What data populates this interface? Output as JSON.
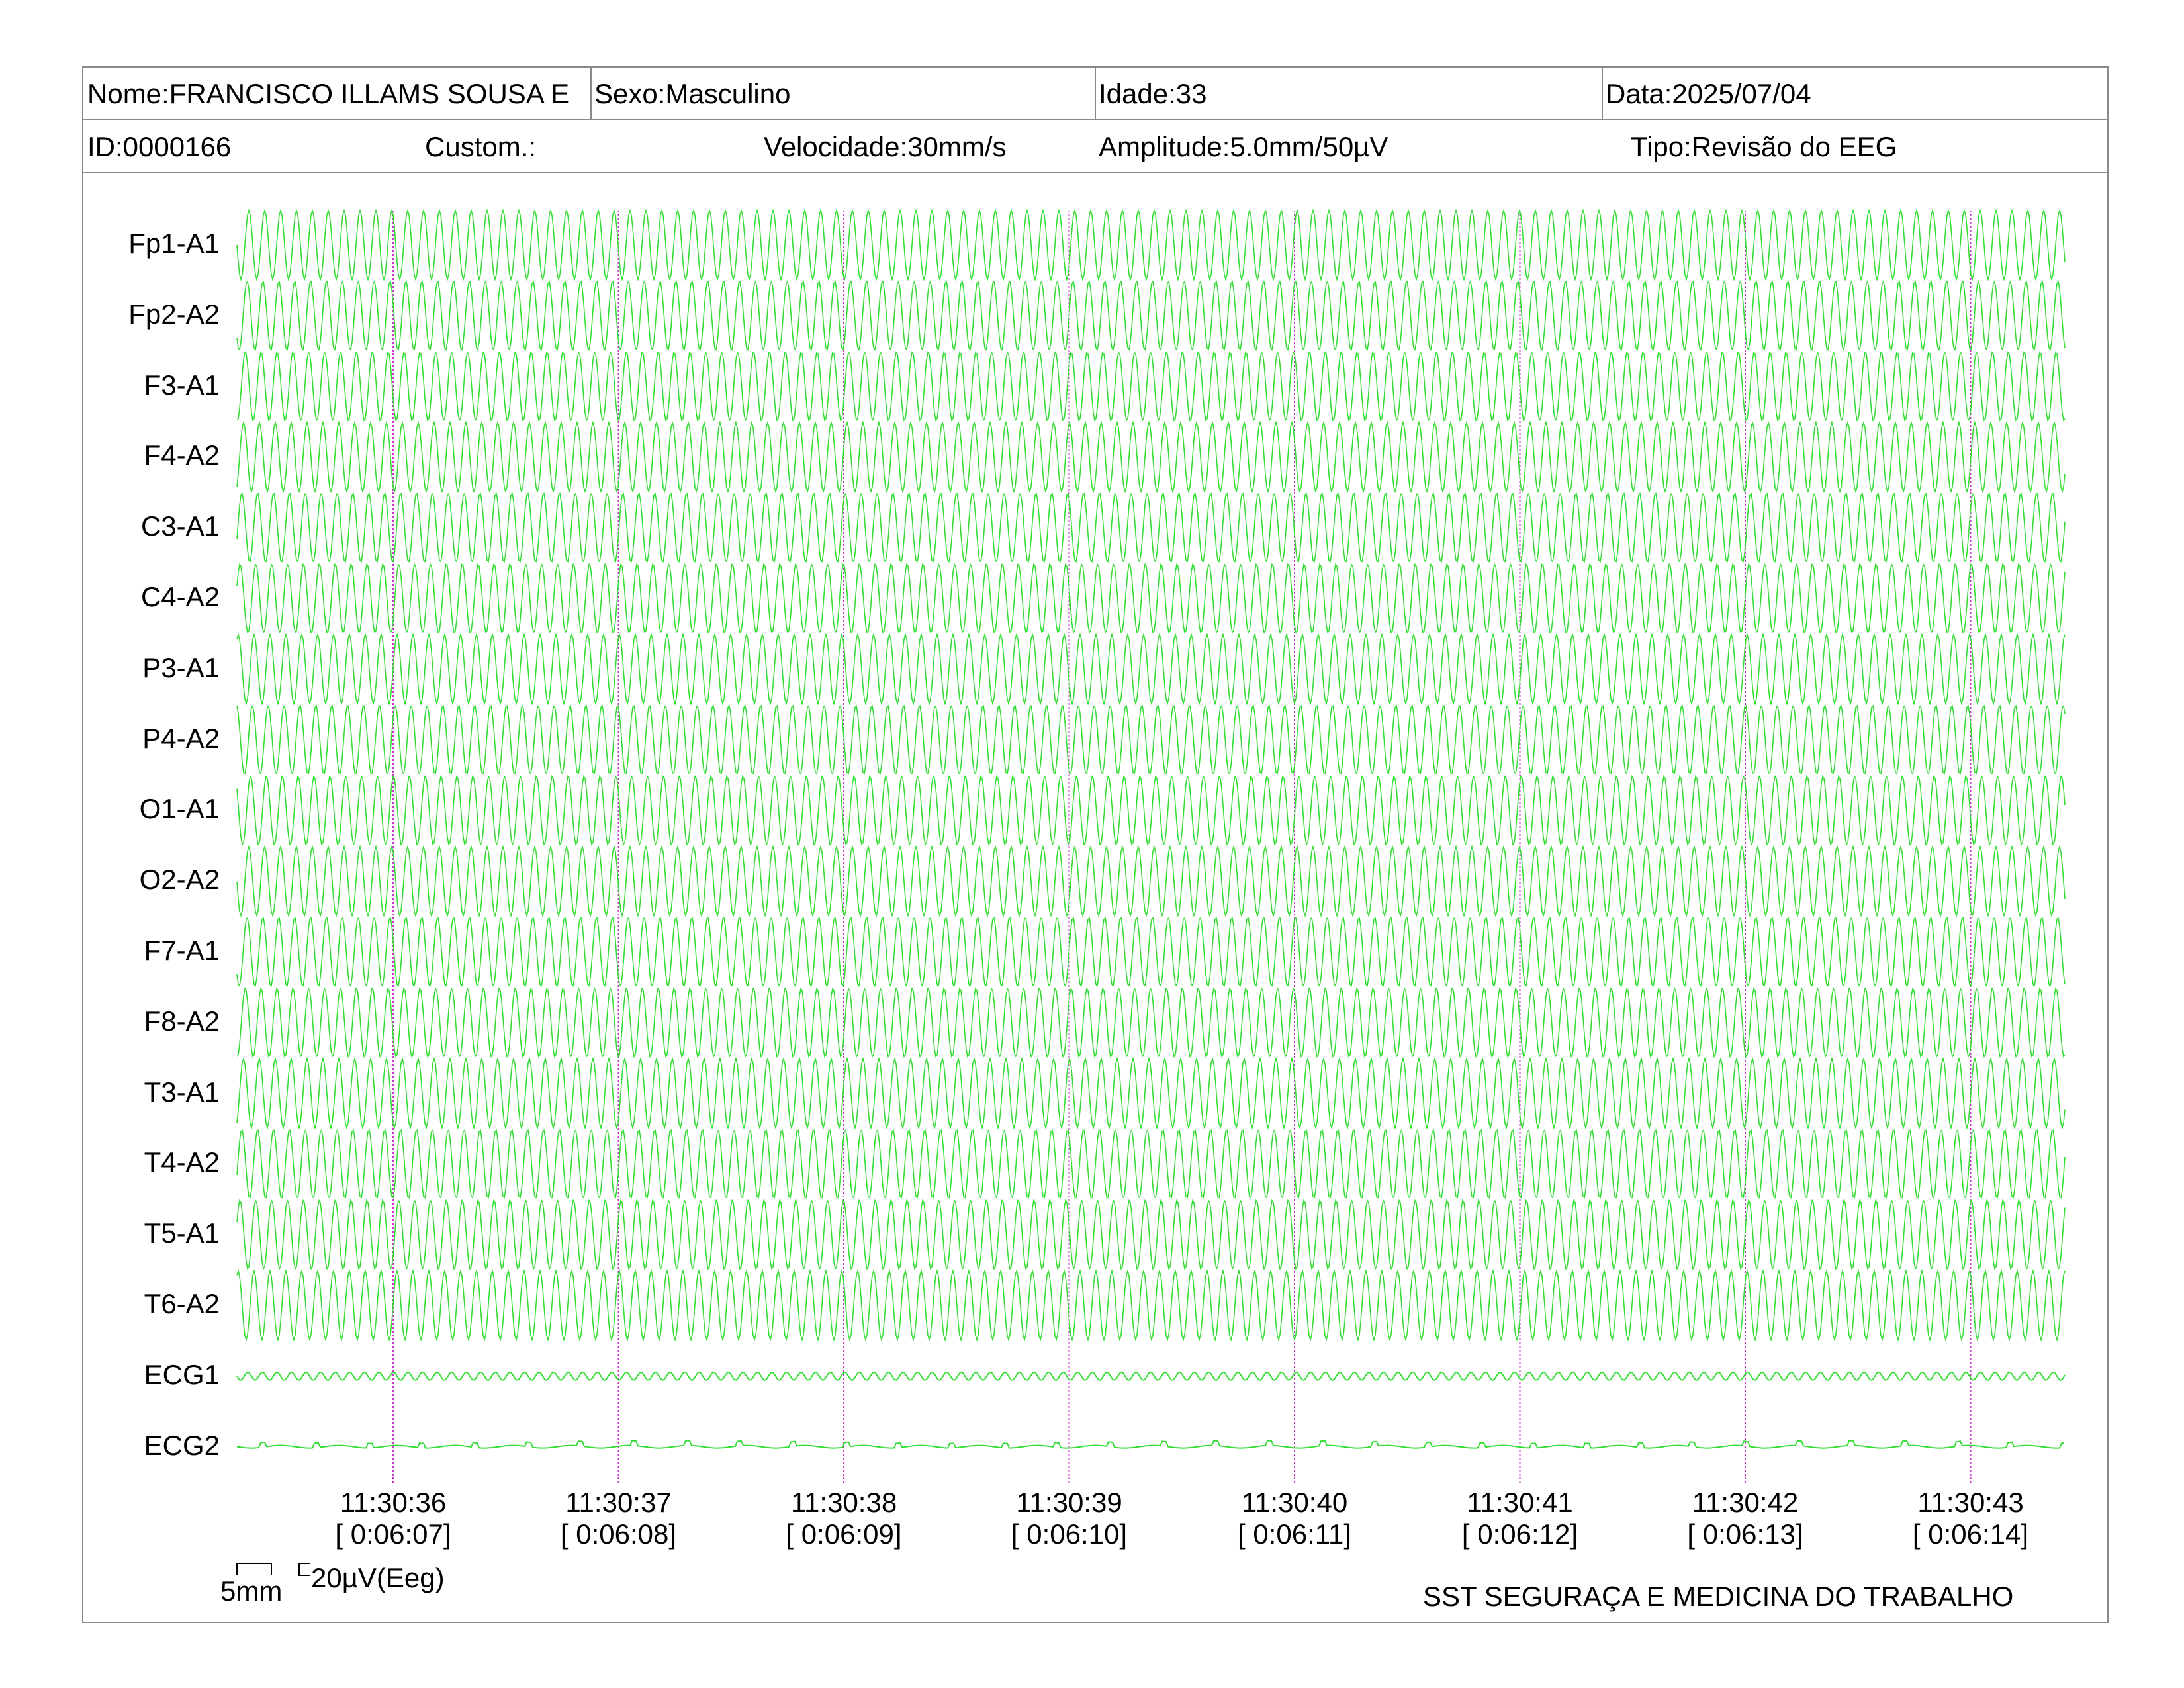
{
  "header": {
    "nome": "Nome:FRANCISCO ILLAMS SOUSA E",
    "sexo": "Sexo:Masculino",
    "idade": "Idade:33",
    "data": "Data:2025/07/04",
    "id": "ID:0000166",
    "custom": "Custom.:",
    "velocidade": "Velocidade:30mm/s",
    "amplitude": "Amplitude:5.0mm/50µV",
    "tipo": "Tipo:Revisão do EEG"
  },
  "channels": [
    "Fp1-A1",
    "Fp2-A2",
    "F3-A1",
    "F4-A2",
    "C3-A1",
    "C4-A2",
    "P3-A1",
    "P4-A2",
    "O1-A1",
    "O2-A2",
    "F7-A1",
    "F8-A2",
    "T3-A1",
    "T4-A2",
    "T5-A1",
    "T6-A2",
    "ECG1",
    "ECG2"
  ],
  "time_marks": [
    {
      "clock": "11:30:36",
      "elapsed": "[ 0:06:07]"
    },
    {
      "clock": "11:30:37",
      "elapsed": "[ 0:06:08]"
    },
    {
      "clock": "11:30:38",
      "elapsed": "[ 0:06:09]"
    },
    {
      "clock": "11:30:39",
      "elapsed": "[ 0:06:10]"
    },
    {
      "clock": "11:30:40",
      "elapsed": "[ 0:06:11]"
    },
    {
      "clock": "11:30:41",
      "elapsed": "[ 0:06:12]"
    },
    {
      "clock": "11:30:42",
      "elapsed": "[ 0:06:13]"
    },
    {
      "clock": "11:30:43",
      "elapsed": "[ 0:06:14]"
    }
  ],
  "scale": {
    "time": "5mm",
    "amplitude": "20µV(Eeg)"
  },
  "footer": "SST SEGURAÇA E MEDICINA DO TRABALHO",
  "colors": {
    "trace": "#33dd33",
    "marker": "#cc33cc",
    "border": "#8a8a8a"
  }
}
